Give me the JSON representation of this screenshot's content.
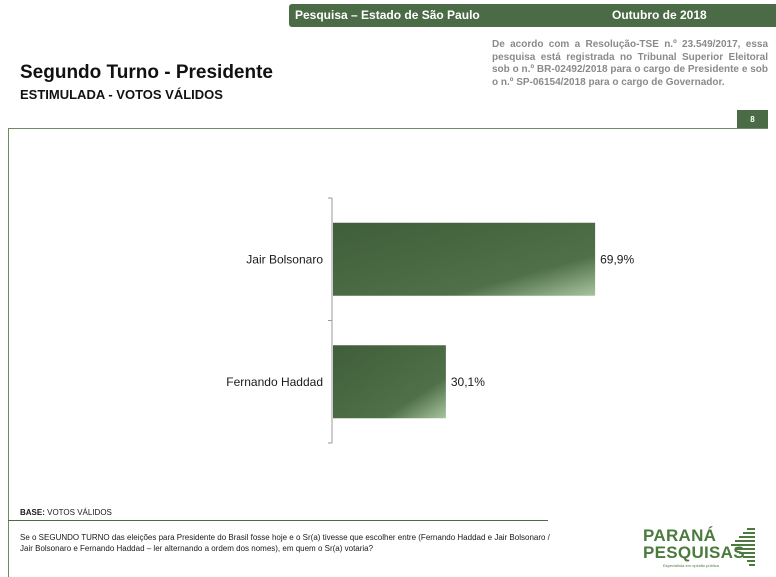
{
  "header": {
    "survey_label": "Pesquisa – Estado de São Paulo",
    "date_label": "Outubro de 2018",
    "registration_text": "De acordo com a Resolução-TSE n.º 23.549/2017, essa pesquisa está registrada no Tribunal Superior Eleitoral sob o n.º BR-02492/2018 para o cargo de Presidente e sob o n.º SP-06154/2018 para o cargo de Governador.",
    "page_number": "8"
  },
  "colors": {
    "brand_green": "#4a6b45",
    "bar_dark": "#3f5e3a",
    "bar_light": "#a8c49e"
  },
  "chart_data": {
    "type": "bar",
    "orientation": "horizontal",
    "title": "Segundo Turno - Presidente",
    "subtitle": "ESTIMULADA - VOTOS VÁLIDOS",
    "categories": [
      "Jair Bolsonaro",
      "Fernando Haddad"
    ],
    "values": [
      69.9,
      30.1
    ],
    "value_labels": [
      "69,9%",
      "30,1%"
    ],
    "xlim": [
      0,
      100
    ],
    "grid": false,
    "legend": "none"
  },
  "footer": {
    "base_label": "BASE:",
    "base_value": "VOTOS VÁLIDOS",
    "question": "Se o SEGUNDO TURNO das eleições para Presidente do Brasil fosse hoje e o Sr(a) tivesse que escolher entre (Fernando Haddad e Jair Bolsonaro / Jair Bolsonaro e Fernando Haddad – ler alternando a ordem dos nomes), em quem o Sr(a) votaria?"
  },
  "logo": {
    "line1": "PARANÁ",
    "line2": "PESQUISAS",
    "tagline": "Especialista em opinião pública"
  }
}
